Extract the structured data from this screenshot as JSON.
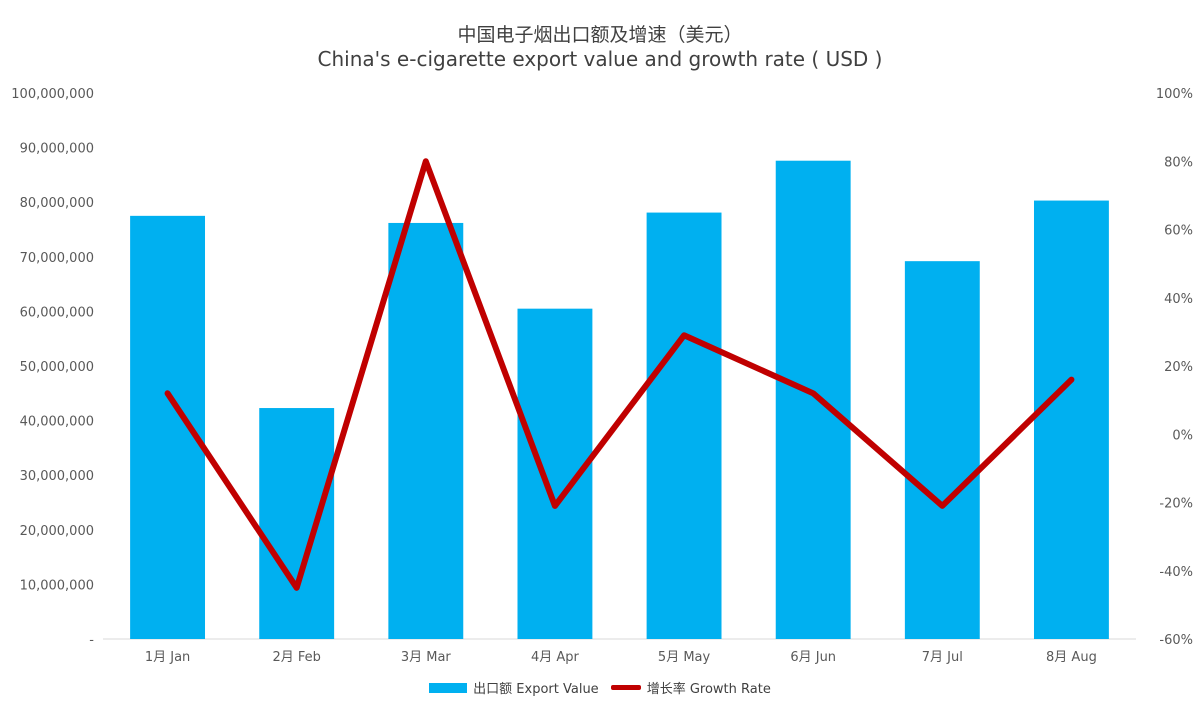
{
  "colors": {
    "bar": "#00b0f0",
    "line": "#c00000",
    "axis_text": "#595959",
    "gridline": "#d9d9d9"
  },
  "legend": {
    "bar_label": "出口额 Export Value",
    "line_label": "增长率 Growth Rate"
  },
  "chart_data": {
    "type": "bar",
    "title": "中国电子烟出口额及增速（美元）",
    "subtitle": "China's e-cigarette export value and growth rate ( USD )",
    "categories": [
      "1月 Jan",
      "2月 Feb",
      "3月 Mar",
      "4月 Apr",
      "5月 May",
      "6月 Jun",
      "7月 Jul",
      "8月 Aug"
    ],
    "series": [
      {
        "name": "出口额 Export Value",
        "type": "bar",
        "axis": "left",
        "values": [
          77500000,
          42300000,
          76200000,
          60500000,
          78100000,
          87600000,
          69200000,
          80300000
        ]
      },
      {
        "name": "增长率 Growth Rate",
        "type": "line",
        "axis": "right",
        "values": [
          12,
          -45,
          80,
          -21,
          29,
          12,
          -21,
          16
        ]
      }
    ],
    "ylim_left": [
      0,
      100000000
    ],
    "yticks_left": [
      "-",
      "10,000,000",
      "20,000,000",
      "30,000,000",
      "40,000,000",
      "50,000,000",
      "60,000,000",
      "70,000,000",
      "80,000,000",
      "90,000,000",
      "100,000,000"
    ],
    "ylim_right": [
      -60,
      100
    ],
    "yticks_right": [
      "-60%",
      "-40%",
      "-20%",
      "0%",
      "20%",
      "40%",
      "60%",
      "80%",
      "100%"
    ],
    "grid": false,
    "legend_position": "bottom"
  }
}
